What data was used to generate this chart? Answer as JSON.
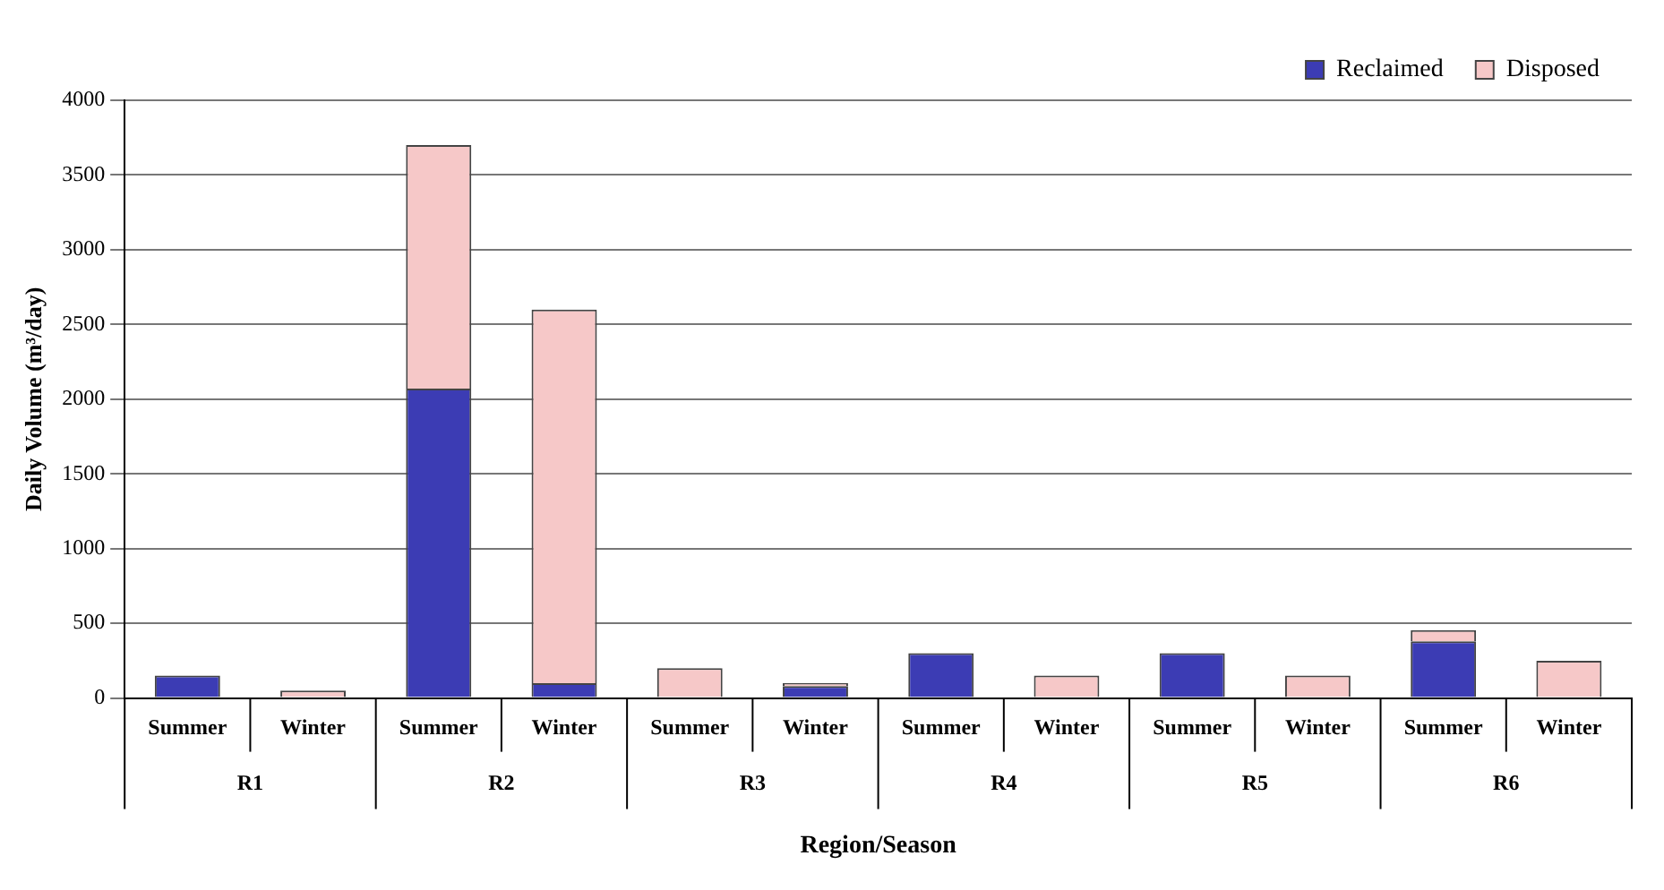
{
  "chart_data": {
    "type": "bar",
    "stacked": true,
    "ylabel": "Daily Volume (m³/day)",
    "xlabel": "Region/Season",
    "categories": [
      "Summer",
      "Winter",
      "Summer",
      "Winter",
      "Summer",
      "Winter",
      "Summer",
      "Winter",
      "Summer",
      "Winter",
      "Summer",
      "Winter"
    ],
    "annotations": [
      "R1",
      "R2",
      "R3",
      "R4",
      "R5",
      "R6"
    ],
    "series": [
      {
        "name": "Reclaimed",
        "color": "#3c3cb4",
        "values": [
          150,
          0,
          2070,
          100,
          0,
          80,
          300,
          0,
          300,
          0,
          380,
          0
        ]
      },
      {
        "name": "Disposed",
        "color": "#f6c8c8",
        "values": [
          0,
          50,
          1630,
          2500,
          200,
          20,
          0,
          150,
          0,
          150,
          75,
          250
        ]
      }
    ],
    "ylim": [
      0,
      4000
    ],
    "yticks": [
      0,
      500,
      1000,
      1500,
      2000,
      2500,
      3000,
      3500,
      4000
    ],
    "grid": "y",
    "legend": "top right"
  }
}
